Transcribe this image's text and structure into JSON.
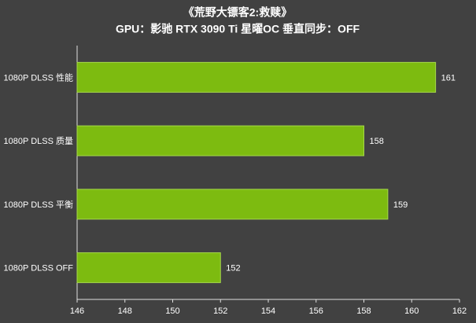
{
  "chart_data": {
    "type": "bar",
    "orientation": "horizontal",
    "title": "《荒野大镖客2:救赎》",
    "subtitle": "GPU：影驰 RTX 3090 Ti 星曜OC  垂直同步：OFF",
    "categories": [
      "1080P DLSS 性能",
      "1080P DLSS 质量",
      "1080P DLSS 平衡",
      "1080P DLSS OFF"
    ],
    "values": [
      161,
      158,
      159,
      152
    ],
    "color": "#7dbb10",
    "xlim": [
      146,
      162
    ],
    "xticks": [
      146,
      148,
      150,
      152,
      154,
      156,
      158,
      160,
      162
    ]
  }
}
